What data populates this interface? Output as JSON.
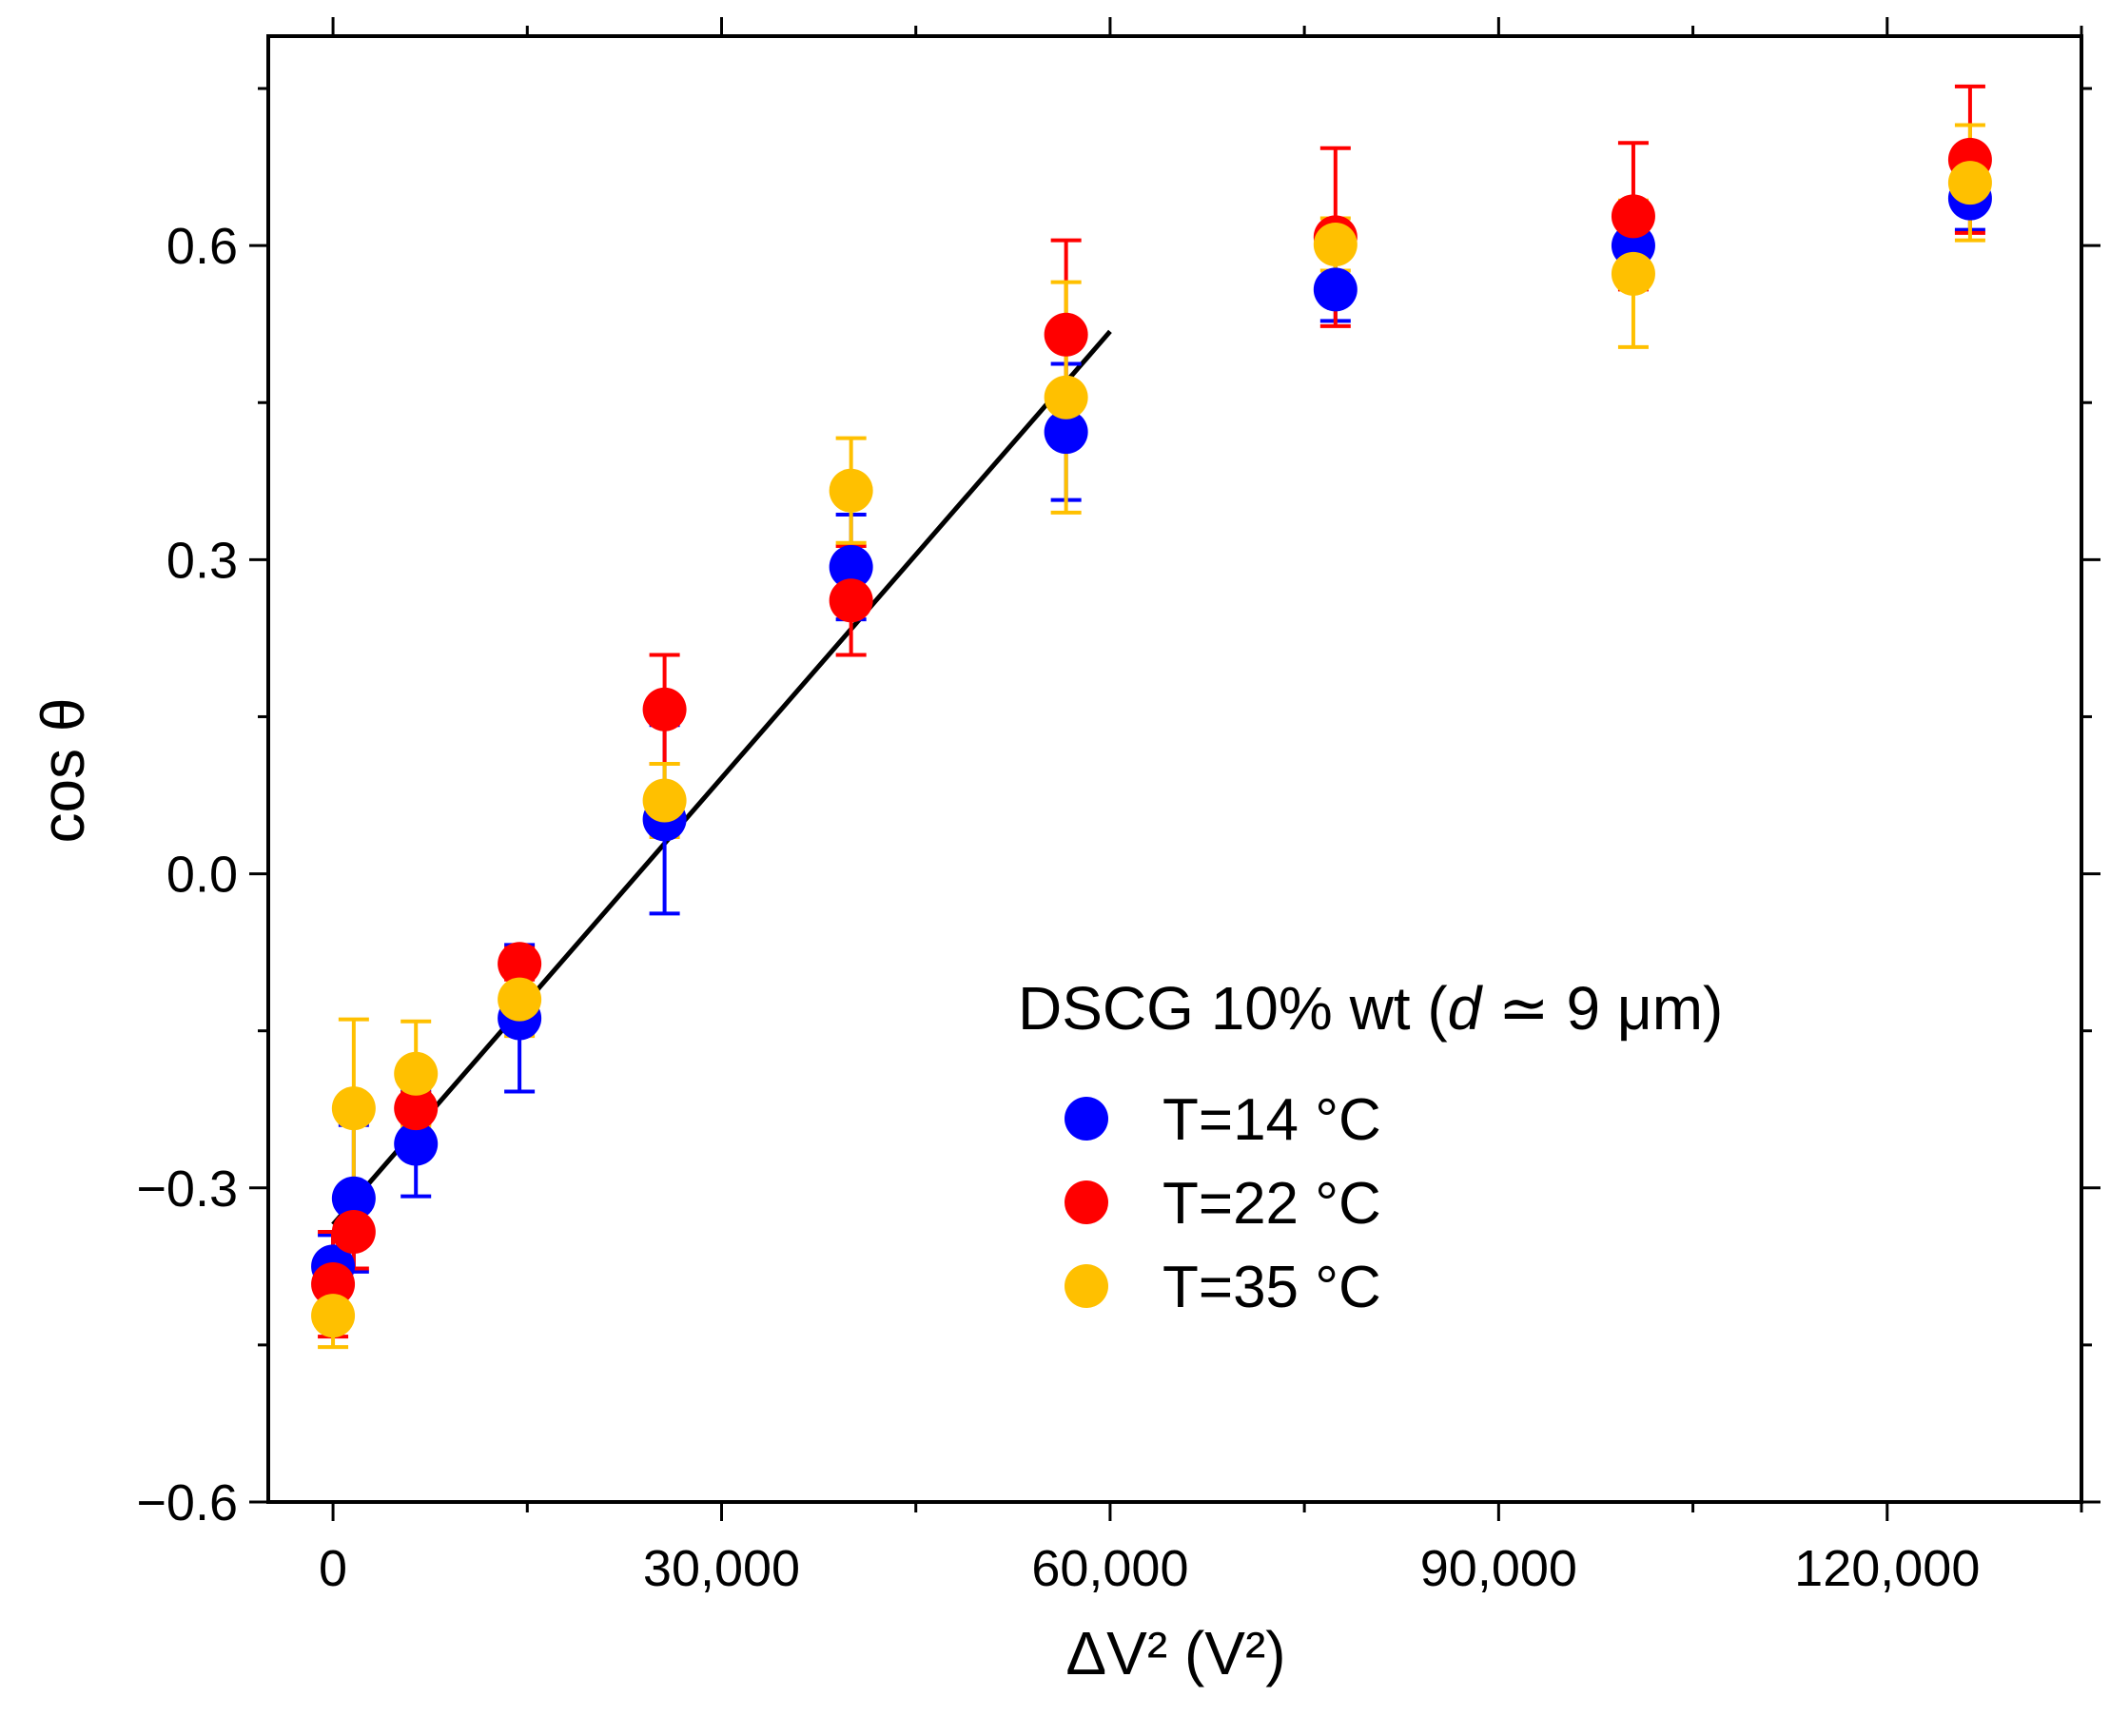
{
  "chart_data": {
    "type": "scatter",
    "xlabel": "ΔV² (V²)",
    "ylabel": "cos θ",
    "xlim": [
      -5000,
      135000
    ],
    "ylim": [
      -0.6,
      0.8
    ],
    "xticks": [
      0,
      30000,
      60000,
      90000,
      120000
    ],
    "xtick_labels": [
      "0",
      "30,000",
      "60,000",
      "90,000",
      "120,000"
    ],
    "yticks": [
      -0.6,
      -0.3,
      0.0,
      0.3,
      0.6
    ],
    "ytick_labels": [
      "−0.6",
      "−0.3",
      "0.0",
      "0.3",
      "0.6"
    ],
    "grid": false,
    "legend": {
      "title_prefix": "DSCG 10% wt (",
      "title_var": "d",
      "title_suffix": " ≃ 9 μm)",
      "placement": "bottom-right"
    },
    "series": [
      {
        "name": "T=14 °C",
        "color": "#0000ff",
        "points": [
          {
            "x": 0,
            "y": -0.375,
            "err": 0.03
          },
          {
            "x": 1600,
            "y": -0.31,
            "err": 0.07
          },
          {
            "x": 6400,
            "y": -0.258,
            "err": 0.05
          },
          {
            "x": 14400,
            "y": -0.138,
            "err": 0.07
          },
          {
            "x": 25600,
            "y": 0.052,
            "err": 0.09
          },
          {
            "x": 40000,
            "y": 0.293,
            "err": 0.05
          },
          {
            "x": 56600,
            "y": 0.422,
            "err": 0.065
          },
          {
            "x": 77400,
            "y": 0.558,
            "err": 0.03
          },
          {
            "x": 100400,
            "y": 0.6,
            "err": 0.04
          },
          {
            "x": 126400,
            "y": 0.645,
            "err": 0.03
          }
        ]
      },
      {
        "name": "T=22 °C",
        "color": "#ff0000",
        "points": [
          {
            "x": 0,
            "y": -0.392,
            "err": 0.05
          },
          {
            "x": 1600,
            "y": -0.342,
            "err": 0.035
          },
          {
            "x": 6400,
            "y": -0.224,
            "err": 0.015
          },
          {
            "x": 14400,
            "y": -0.086,
            "err": 0.015
          },
          {
            "x": 25600,
            "y": 0.157,
            "err": 0.052
          },
          {
            "x": 40000,
            "y": 0.261,
            "err": 0.052
          },
          {
            "x": 56600,
            "y": 0.515,
            "err": 0.09
          },
          {
            "x": 77400,
            "y": 0.608,
            "err": 0.085
          },
          {
            "x": 100400,
            "y": 0.628,
            "err": 0.07
          },
          {
            "x": 126400,
            "y": 0.682,
            "err": 0.07
          }
        ]
      },
      {
        "name": "T=35 °C",
        "color": "#ffc000",
        "points": [
          {
            "x": 0,
            "y": -0.422,
            "err": 0.03
          },
          {
            "x": 1600,
            "y": -0.224,
            "err": 0.085
          },
          {
            "x": 6400,
            "y": -0.191,
            "err": 0.05
          },
          {
            "x": 14400,
            "y": -0.12,
            "err": 0.035
          },
          {
            "x": 25600,
            "y": 0.07,
            "err": 0.035
          },
          {
            "x": 40000,
            "y": 0.366,
            "err": 0.05
          },
          {
            "x": 56600,
            "y": 0.455,
            "err": 0.11
          },
          {
            "x": 77400,
            "y": 0.601,
            "err": 0.025
          },
          {
            "x": 100400,
            "y": 0.573,
            "err": 0.07
          },
          {
            "x": 126400,
            "y": 0.66,
            "err": 0.055
          }
        ]
      }
    ],
    "fit_line": {
      "x": [
        0,
        60000
      ],
      "y": [
        -0.335,
        0.518
      ],
      "color": "#000000"
    }
  }
}
